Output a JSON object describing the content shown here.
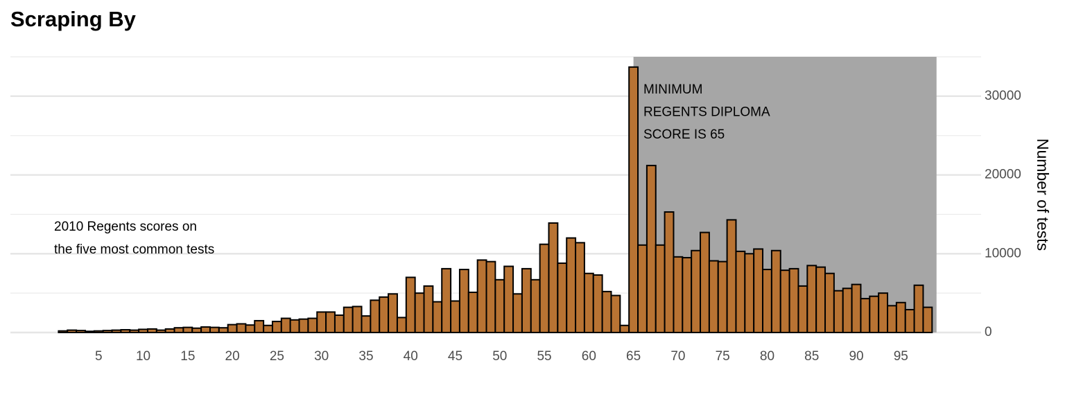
{
  "chart_data": {
    "type": "bar",
    "title": "Scraping By",
    "y_label": "Number of tests",
    "x": [
      1,
      2,
      3,
      4,
      5,
      6,
      7,
      8,
      9,
      10,
      11,
      12,
      13,
      14,
      15,
      16,
      17,
      18,
      19,
      20,
      21,
      22,
      23,
      24,
      25,
      26,
      27,
      28,
      29,
      30,
      31,
      32,
      33,
      34,
      35,
      36,
      37,
      38,
      39,
      40,
      41,
      42,
      43,
      44,
      45,
      46,
      47,
      48,
      49,
      50,
      51,
      52,
      53,
      54,
      55,
      56,
      57,
      58,
      59,
      60,
      61,
      62,
      63,
      64,
      65,
      66,
      67,
      68,
      69,
      70,
      71,
      72,
      73,
      74,
      75,
      76,
      77,
      78,
      79,
      80,
      81,
      82,
      83,
      84,
      85,
      86,
      87,
      88,
      89,
      90,
      91,
      92,
      93,
      94,
      95,
      96,
      97,
      98
    ],
    "values": [
      200,
      300,
      250,
      150,
      200,
      250,
      300,
      350,
      300,
      400,
      450,
      300,
      450,
      600,
      650,
      550,
      700,
      650,
      600,
      1000,
      1100,
      950,
      1500,
      900,
      1400,
      1800,
      1600,
      1700,
      1800,
      2600,
      2600,
      2200,
      3200,
      3300,
      2100,
      4100,
      4500,
      4900,
      1900,
      7000,
      5000,
      5900,
      3900,
      8100,
      4000,
      8000,
      5100,
      9200,
      9000,
      6700,
      8400,
      4900,
      8100,
      6700,
      11200,
      13900,
      8800,
      12000,
      11400,
      7500,
      7300,
      5200,
      4700,
      900,
      33700,
      11100,
      21200,
      11100,
      15300,
      9600,
      9500,
      10400,
      12700,
      9100,
      9000,
      14300,
      10300,
      10000,
      10600,
      8000,
      10400,
      7900,
      8100,
      5900,
      8500,
      8300,
      7500,
      5300,
      5600,
      6100,
      4300,
      4600,
      5000,
      3400,
      3800,
      2900,
      6000,
      3200
    ],
    "color": "#b87333",
    "highlight_range": [
      65,
      99
    ],
    "highlight_color": "#a6a6a6",
    "xlim": [
      -4.9,
      104
    ],
    "ylim": [
      0,
      35000
    ],
    "xticks": [
      5,
      10,
      15,
      20,
      25,
      30,
      35,
      40,
      45,
      50,
      55,
      60,
      65,
      70,
      75,
      80,
      85,
      90,
      95
    ],
    "yticks": [
      0,
      10000,
      20000,
      30000
    ],
    "grid": true,
    "y_axis_side": "right",
    "annotations": [
      {
        "lines": [
          "2010 Regents scores on",
          "the five most common tests"
        ]
      },
      {
        "lines": [
          "MINIMUM",
          "REGENTS DIPLOMA",
          "SCORE IS 65"
        ]
      }
    ]
  }
}
